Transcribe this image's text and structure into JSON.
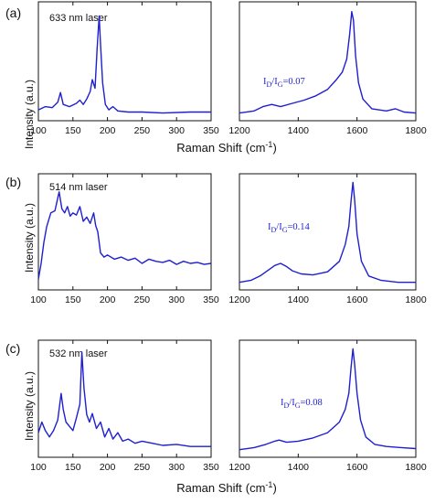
{
  "line_color": "#1f1fd0",
  "chart_data": [
    {
      "type": "line",
      "panel": "(a)",
      "annotation": "633 nm laser",
      "ylabel": "Intensity (a.u.)",
      "xlabel": "Raman Shift",
      "xunit": "(cm",
      "xunit_exp": "-1",
      "xunit_close": ")",
      "xlim": [
        100,
        350
      ],
      "xticks": [
        100,
        150,
        200,
        250,
        300,
        350
      ],
      "ylim": [
        0,
        1
      ],
      "x": [
        100,
        110,
        120,
        128,
        132,
        136,
        145,
        155,
        160,
        165,
        170,
        175,
        178,
        182,
        185,
        188,
        190,
        193,
        197,
        202,
        208,
        215,
        230,
        250,
        280,
        320,
        350
      ],
      "y": [
        0.05,
        0.08,
        0.07,
        0.12,
        0.21,
        0.1,
        0.08,
        0.11,
        0.14,
        0.1,
        0.15,
        0.22,
        0.33,
        0.25,
        0.62,
        0.92,
        0.66,
        0.3,
        0.1,
        0.05,
        0.08,
        0.04,
        0.03,
        0.03,
        0.02,
        0.03,
        0.03
      ]
    },
    {
      "type": "line",
      "panel": "(a)",
      "ratio_label": "I",
      "ratio_sub1": "D",
      "ratio_mid": "/I",
      "ratio_sub2": "G",
      "ratio_value": "=0.07",
      "xlim": [
        1200,
        1800
      ],
      "xticks": [
        1200,
        1400,
        1600,
        1800
      ],
      "ylim": [
        0,
        1
      ],
      "x": [
        1200,
        1250,
        1280,
        1310,
        1340,
        1380,
        1420,
        1460,
        1500,
        1530,
        1550,
        1565,
        1575,
        1582,
        1588,
        1595,
        1605,
        1620,
        1650,
        1700,
        1730,
        1760,
        1800
      ],
      "y": [
        0.02,
        0.04,
        0.08,
        0.1,
        0.08,
        0.11,
        0.14,
        0.18,
        0.24,
        0.33,
        0.4,
        0.52,
        0.75,
        0.96,
        0.88,
        0.55,
        0.3,
        0.15,
        0.06,
        0.04,
        0.06,
        0.03,
        0.02
      ]
    },
    {
      "type": "line",
      "panel": "(b)",
      "annotation": "514 nm laser",
      "ylabel": "Intensity (a.u.)",
      "xlim": [
        100,
        350
      ],
      "xticks": [
        100,
        150,
        200,
        250,
        300,
        350
      ],
      "ylim": [
        0,
        1
      ],
      "x": [
        100,
        104,
        108,
        112,
        118,
        124,
        130,
        134,
        138,
        142,
        146,
        150,
        155,
        160,
        165,
        170,
        175,
        180,
        183,
        186,
        190,
        195,
        200,
        210,
        220,
        230,
        240,
        250,
        260,
        270,
        280,
        290,
        300,
        310,
        320,
        330,
        340,
        350
      ],
      "y": [
        0.05,
        0.2,
        0.4,
        0.55,
        0.68,
        0.7,
        0.88,
        0.72,
        0.68,
        0.74,
        0.65,
        0.68,
        0.66,
        0.74,
        0.6,
        0.64,
        0.58,
        0.68,
        0.56,
        0.5,
        0.3,
        0.26,
        0.28,
        0.24,
        0.26,
        0.23,
        0.25,
        0.2,
        0.24,
        0.22,
        0.21,
        0.23,
        0.19,
        0.22,
        0.2,
        0.21,
        0.19,
        0.2
      ]
    },
    {
      "type": "line",
      "panel": "(b)",
      "ratio_label": "I",
      "ratio_sub1": "D",
      "ratio_mid": "/I",
      "ratio_sub2": "G",
      "ratio_value": "=0.14",
      "xlim": [
        1200,
        1800
      ],
      "xticks": [
        1200,
        1400,
        1600,
        1800
      ],
      "ylim": [
        0,
        1
      ],
      "x": [
        1200,
        1240,
        1270,
        1300,
        1320,
        1340,
        1360,
        1380,
        1410,
        1450,
        1500,
        1540,
        1560,
        1572,
        1580,
        1586,
        1592,
        1600,
        1615,
        1640,
        1680,
        1740,
        1800
      ],
      "y": [
        0.02,
        0.04,
        0.08,
        0.14,
        0.18,
        0.2,
        0.17,
        0.13,
        0.1,
        0.09,
        0.12,
        0.22,
        0.38,
        0.55,
        0.8,
        0.97,
        0.8,
        0.48,
        0.22,
        0.08,
        0.04,
        0.02,
        0.02
      ]
    },
    {
      "type": "line",
      "panel": "(c)",
      "annotation": "532 nm laser",
      "ylabel": "Intensity (a.u.)",
      "xlabel": "Raman Shift",
      "xunit": "(cm",
      "xunit_exp": "-1",
      "xunit_close": ")",
      "xlim": [
        100,
        350
      ],
      "xticks": [
        100,
        150,
        200,
        250,
        300,
        350
      ],
      "ylim": [
        0,
        1
      ],
      "x": [
        100,
        105,
        110,
        116,
        122,
        128,
        133,
        136,
        140,
        145,
        150,
        155,
        160,
        163,
        166,
        170,
        174,
        178,
        184,
        190,
        196,
        202,
        208,
        215,
        222,
        230,
        240,
        250,
        265,
        280,
        300,
        320,
        350
      ],
      "y": [
        0.18,
        0.28,
        0.2,
        0.14,
        0.2,
        0.3,
        0.55,
        0.4,
        0.28,
        0.24,
        0.2,
        0.32,
        0.45,
        0.94,
        0.6,
        0.35,
        0.28,
        0.36,
        0.22,
        0.28,
        0.14,
        0.22,
        0.12,
        0.18,
        0.1,
        0.12,
        0.08,
        0.1,
        0.08,
        0.06,
        0.07,
        0.05,
        0.05
      ]
    },
    {
      "type": "line",
      "panel": "(c)",
      "ratio_label": "I",
      "ratio_sub1": "D",
      "ratio_mid": "/I",
      "ratio_sub2": "G",
      "ratio_value": "=0.08",
      "xlim": [
        1200,
        1800
      ],
      "xticks": [
        1200,
        1400,
        1600,
        1800
      ],
      "ylim": [
        0,
        1
      ],
      "x": [
        1200,
        1250,
        1290,
        1320,
        1335,
        1360,
        1400,
        1450,
        1500,
        1540,
        1560,
        1572,
        1580,
        1586,
        1592,
        1600,
        1612,
        1630,
        1660,
        1700,
        1750,
        1800
      ],
      "y": [
        0.02,
        0.04,
        0.07,
        0.1,
        0.11,
        0.09,
        0.1,
        0.13,
        0.18,
        0.28,
        0.4,
        0.55,
        0.8,
        0.97,
        0.82,
        0.55,
        0.3,
        0.14,
        0.07,
        0.05,
        0.04,
        0.03
      ]
    }
  ]
}
